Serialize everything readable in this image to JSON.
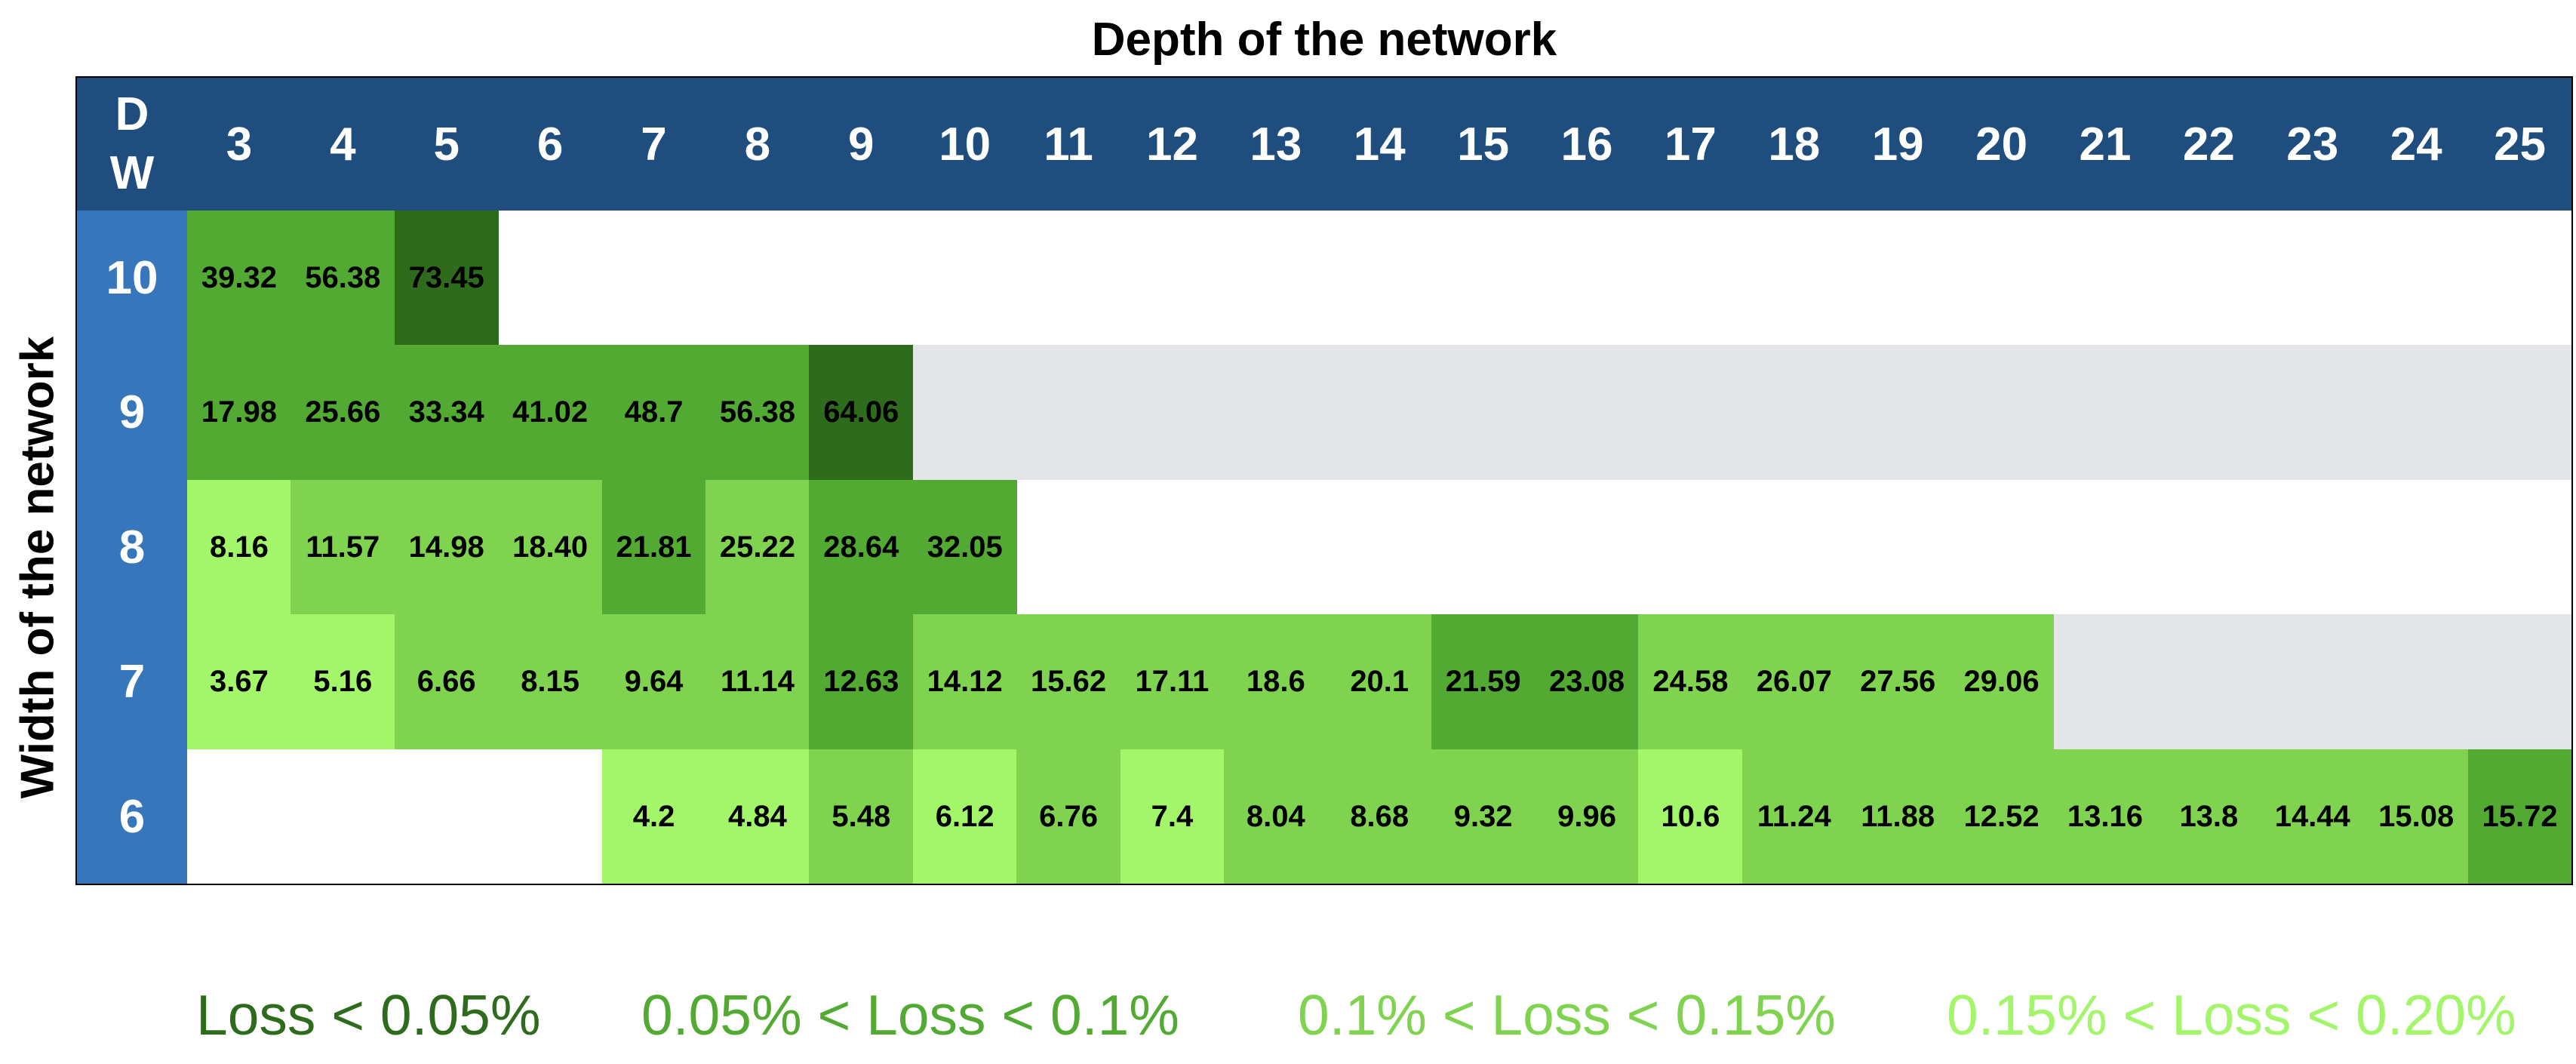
{
  "chart_data": {
    "type": "heatmap",
    "title": "Depth of the network",
    "xlabel": "Depth of the network",
    "ylabel": "Width of the network",
    "corner_top": "D",
    "corner_bottom": "W",
    "x": [
      "3",
      "4",
      "5",
      "6",
      "7",
      "8",
      "9",
      "10",
      "11",
      "12",
      "13",
      "14",
      "15",
      "16",
      "17",
      "18",
      "19",
      "20",
      "21",
      "22",
      "23",
      "24",
      "25"
    ],
    "rows": [
      {
        "width": "10",
        "band_color": "#ffffff",
        "cells": [
          {
            "depth": "3",
            "value": "39.32",
            "level": 2
          },
          {
            "depth": "4",
            "value": "56.38",
            "level": 2
          },
          {
            "depth": "5",
            "value": "73.45",
            "level": 1
          }
        ]
      },
      {
        "width": "9",
        "band_color": "#e4e5e8",
        "cells": [
          {
            "depth": "3",
            "value": "17.98",
            "level": 2
          },
          {
            "depth": "4",
            "value": "25.66",
            "level": 2
          },
          {
            "depth": "5",
            "value": "33.34",
            "level": 2
          },
          {
            "depth": "6",
            "value": "41.02",
            "level": 2
          },
          {
            "depth": "7",
            "value": "48.7",
            "level": 2
          },
          {
            "depth": "8",
            "value": "56.38",
            "level": 2
          },
          {
            "depth": "9",
            "value": "64.06",
            "level": 1
          }
        ]
      },
      {
        "width": "8",
        "band_color": "#ffffff",
        "cells": [
          {
            "depth": "3",
            "value": "8.16",
            "level": 4
          },
          {
            "depth": "4",
            "value": "11.57",
            "level": 3
          },
          {
            "depth": "5",
            "value": "14.98",
            "level": 3
          },
          {
            "depth": "6",
            "value": "18.40",
            "level": 3
          },
          {
            "depth": "7",
            "value": "21.81",
            "level": 2
          },
          {
            "depth": "8",
            "value": "25.22",
            "level": 3
          },
          {
            "depth": "9",
            "value": "28.64",
            "level": 2
          },
          {
            "depth": "10",
            "value": "32.05",
            "level": 2
          }
        ]
      },
      {
        "width": "7",
        "band_color": "#e4e5e8",
        "cells": [
          {
            "depth": "3",
            "value": "3.67",
            "level": 4
          },
          {
            "depth": "4",
            "value": "5.16",
            "level": 4
          },
          {
            "depth": "5",
            "value": "6.66",
            "level": 3
          },
          {
            "depth": "6",
            "value": "8.15",
            "level": 3
          },
          {
            "depth": "7",
            "value": "9.64",
            "level": 3
          },
          {
            "depth": "8",
            "value": "11.14",
            "level": 3
          },
          {
            "depth": "9",
            "value": "12.63",
            "level": 2
          },
          {
            "depth": "10",
            "value": "14.12",
            "level": 3
          },
          {
            "depth": "11",
            "value": "15.62",
            "level": 3
          },
          {
            "depth": "12",
            "value": "17.11",
            "level": 3
          },
          {
            "depth": "13",
            "value": "18.6",
            "level": 3
          },
          {
            "depth": "14",
            "value": "20.1",
            "level": 3
          },
          {
            "depth": "15",
            "value": "21.59",
            "level": 2
          },
          {
            "depth": "16",
            "value": "23.08",
            "level": 2
          },
          {
            "depth": "17",
            "value": "24.58",
            "level": 3
          },
          {
            "depth": "18",
            "value": "26.07",
            "level": 3
          },
          {
            "depth": "19",
            "value": "27.56",
            "level": 3
          },
          {
            "depth": "20",
            "value": "29.06",
            "level": 3
          }
        ]
      },
      {
        "width": "6",
        "band_color": "#ffffff",
        "cells": [
          {
            "depth": "7",
            "value": "4.2",
            "level": 4
          },
          {
            "depth": "8",
            "value": "4.84",
            "level": 4
          },
          {
            "depth": "9",
            "value": "5.48",
            "level": 3
          },
          {
            "depth": "10",
            "value": "6.12",
            "level": 4
          },
          {
            "depth": "11",
            "value": "6.76",
            "level": 3
          },
          {
            "depth": "12",
            "value": "7.4",
            "level": 4
          },
          {
            "depth": "13",
            "value": "8.04",
            "level": 3
          },
          {
            "depth": "14",
            "value": "8.68",
            "level": 3
          },
          {
            "depth": "15",
            "value": "9.32",
            "level": 3
          },
          {
            "depth": "16",
            "value": "9.96",
            "level": 3
          },
          {
            "depth": "17",
            "value": "10.6",
            "level": 4
          },
          {
            "depth": "18",
            "value": "11.24",
            "level": 3
          },
          {
            "depth": "19",
            "value": "11.88",
            "level": 3
          },
          {
            "depth": "20",
            "value": "12.52",
            "level": 3
          },
          {
            "depth": "21",
            "value": "13.16",
            "level": 3
          },
          {
            "depth": "22",
            "value": "13.8",
            "level": 3
          },
          {
            "depth": "23",
            "value": "14.44",
            "level": 3
          },
          {
            "depth": "24",
            "value": "15.08",
            "level": 3
          },
          {
            "depth": "25",
            "value": "15.72",
            "level": 2
          }
        ]
      }
    ],
    "legend": [
      {
        "level": 1,
        "label": "Loss < 0.05%",
        "color": "#2e6b1d"
      },
      {
        "level": 2,
        "label": "0.05% < Loss < 0.1%",
        "color": "#52aa32"
      },
      {
        "level": 3,
        "label": "0.1% < Loss < 0.15%",
        "color": "#7fd34f"
      },
      {
        "level": 4,
        "label": "0.15% < Loss < 0.20%",
        "color": "#a3f569"
      }
    ],
    "header_color": "#1f4e7e",
    "row_header_color": "#3876bb"
  }
}
